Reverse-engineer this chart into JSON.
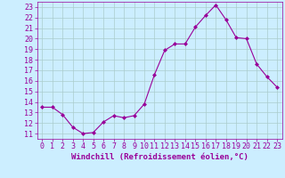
{
  "x": [
    0,
    1,
    2,
    3,
    4,
    5,
    6,
    7,
    8,
    9,
    10,
    11,
    12,
    13,
    14,
    15,
    16,
    17,
    18,
    19,
    20,
    21,
    22,
    23
  ],
  "y": [
    13.5,
    13.5,
    12.8,
    11.6,
    11.0,
    11.1,
    12.1,
    12.7,
    12.5,
    12.7,
    13.8,
    16.6,
    18.9,
    19.5,
    19.5,
    21.1,
    22.2,
    23.2,
    21.8,
    20.1,
    20.0,
    17.6,
    16.4,
    15.4
  ],
  "line_color": "#990099",
  "marker": "D",
  "marker_size": 2.0,
  "bg_color": "#cceeff",
  "grid_color": "#aacccc",
  "xlabel": "Windchill (Refroidissement éolien,°C)",
  "xlabel_fontsize": 6.5,
  "xtick_labels": [
    "0",
    "1",
    "2",
    "3",
    "4",
    "5",
    "6",
    "7",
    "8",
    "9",
    "10",
    "11",
    "12",
    "13",
    "14",
    "15",
    "16",
    "17",
    "18",
    "19",
    "20",
    "21",
    "22",
    "23"
  ],
  "ytick_labels": [
    "11",
    "12",
    "13",
    "14",
    "15",
    "16",
    "17",
    "18",
    "19",
    "20",
    "21",
    "22",
    "23"
  ],
  "ylim": [
    10.5,
    23.5
  ],
  "xlim": [
    -0.5,
    23.5
  ],
  "tick_fontsize": 6.0,
  "font_color": "#990099",
  "spine_color": "#990099"
}
